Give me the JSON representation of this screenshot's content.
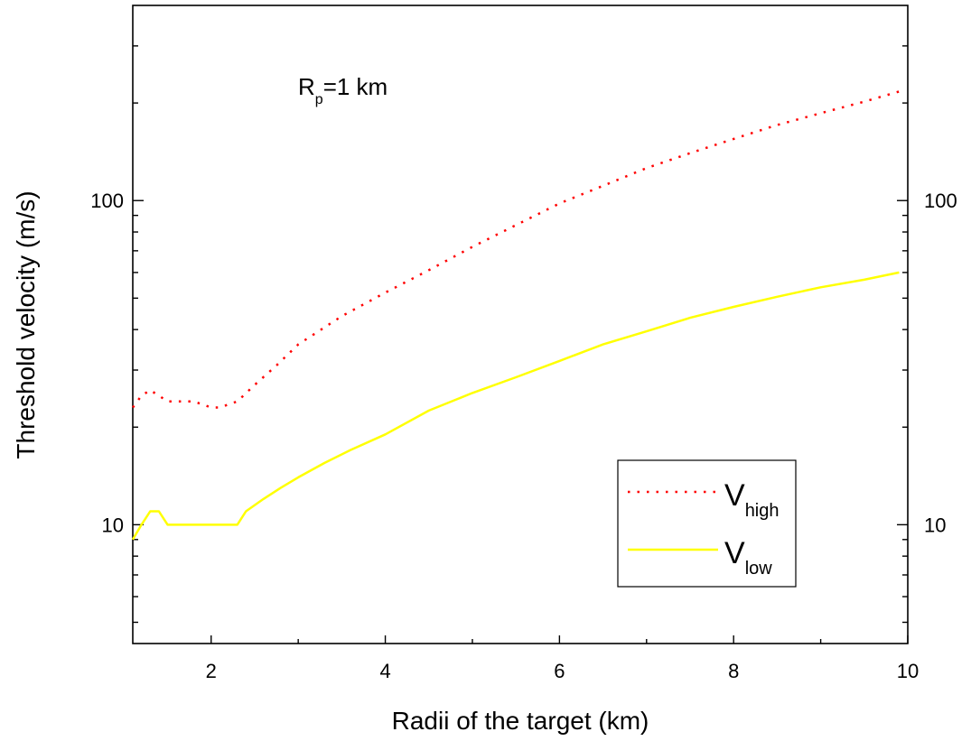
{
  "chart_data": {
    "type": "line",
    "xlabel": "Radii of the target (km)",
    "ylabel": "Threshold velocity (m/s)",
    "xlim": [
      1.1,
      10
    ],
    "ylim": [
      4.3,
      400
    ],
    "yscale": "log",
    "x_ticks": [
      2,
      4,
      6,
      8,
      10
    ],
    "x_tick_labels": [
      "2",
      "4",
      "6",
      "8",
      "10"
    ],
    "y_ticks_labeled": [
      10,
      100
    ],
    "y_tick_labels": [
      "10",
      "100"
    ],
    "y_minor_ticks": [
      5,
      6,
      7,
      8,
      9,
      20,
      30,
      40,
      50,
      60,
      70,
      80,
      90,
      200,
      300
    ],
    "y_axis_mirrored": true,
    "grid": false,
    "legend_position": "bottom-right",
    "annotation": {
      "main": "R",
      "sub": "p",
      "rest": "=1 km"
    },
    "series": [
      {
        "name_main": "V",
        "name_sub": "high",
        "color": "#ff0000",
        "style": "dotted",
        "x": [
          1.1,
          1.2,
          1.3,
          1.4,
          1.5,
          1.6,
          1.7,
          1.8,
          1.9,
          2.0,
          2.1,
          2.2,
          2.3,
          2.5,
          2.75,
          3.0,
          3.5,
          4.0,
          4.5,
          5.0,
          5.5,
          6.0,
          6.5,
          7.0,
          7.5,
          8.0,
          8.5,
          9.0,
          9.5,
          9.9
        ],
        "values": [
          23,
          25,
          26,
          25,
          24,
          24,
          24,
          24,
          23.5,
          23,
          23,
          23.5,
          24,
          27,
          31,
          36,
          44,
          52,
          61,
          72,
          84,
          98,
          111,
          126,
          140,
          155,
          171,
          186,
          202,
          217
        ]
      },
      {
        "name_main": "V",
        "name_sub": "low",
        "color": "#ffff00",
        "style": "solid",
        "x": [
          1.1,
          1.2,
          1.3,
          1.4,
          1.5,
          1.6,
          1.8,
          2.0,
          2.2,
          2.3,
          2.4,
          2.6,
          2.8,
          3.0,
          3.3,
          3.6,
          4.0,
          4.5,
          5.0,
          5.5,
          6.0,
          6.5,
          7.0,
          7.5,
          8.0,
          8.5,
          9.0,
          9.5,
          9.9
        ],
        "values": [
          9,
          10,
          11,
          11,
          10,
          10,
          10,
          10,
          10,
          10,
          11,
          12,
          13,
          14,
          15.5,
          17,
          19,
          22.5,
          25.5,
          28.5,
          32,
          36,
          39.5,
          43.5,
          47,
          50.5,
          54,
          57,
          60
        ]
      }
    ]
  }
}
